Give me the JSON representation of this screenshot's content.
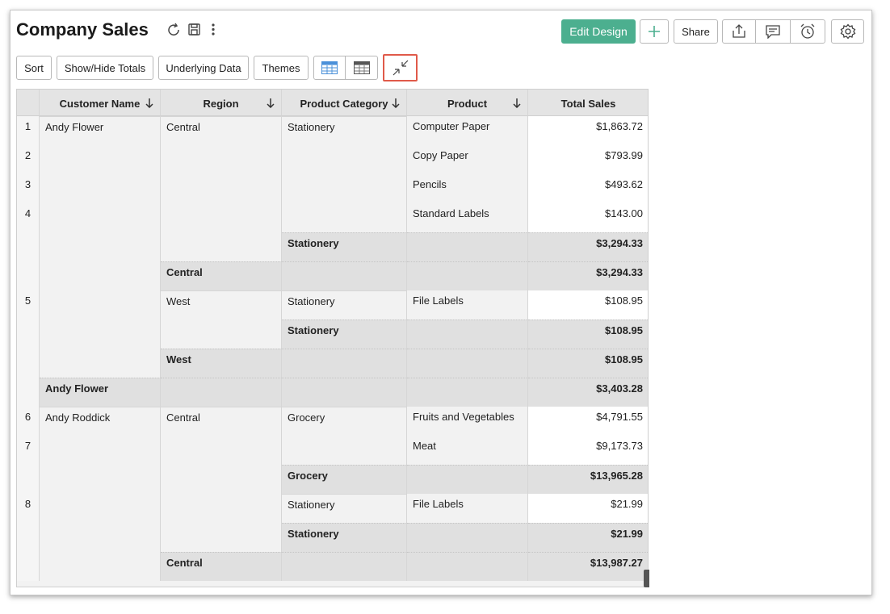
{
  "header": {
    "title": "Company Sales",
    "buttons": [
      "Edit Design",
      "Share"
    ]
  },
  "toolbar": {
    "buttons": [
      "Sort",
      "Show/Hide Totals",
      "Underlying Data",
      "Themes"
    ]
  },
  "table": {
    "columns": [
      "Customer Name",
      "Region",
      "Product Category",
      "Product",
      "Total Sales"
    ],
    "rows": [
      {
        "row": "1",
        "customer": "Andy Flower",
        "region": "Central",
        "category": "Stationery",
        "product": "Computer Paper",
        "sales": "$1,863.72"
      },
      {
        "row": "2",
        "product": "Copy Paper",
        "sales": "$793.99"
      },
      {
        "row": "3",
        "product": "Pencils",
        "sales": "$493.62"
      },
      {
        "row": "4",
        "product": "Standard Labels",
        "sales": "$143.00"
      },
      {
        "category_total": "Stationery",
        "sales": "$3,294.33"
      },
      {
        "region_total": "Central",
        "sales": "$3,294.33"
      },
      {
        "row": "5",
        "region": "West",
        "category": "Stationery",
        "product": "File Labels",
        "sales": "$108.95"
      },
      {
        "category_total": "Stationery",
        "sales": "$108.95"
      },
      {
        "region_total": "West",
        "sales": "$108.95"
      },
      {
        "customer_total": "Andy Flower",
        "sales": "$3,403.28"
      },
      {
        "row": "6",
        "customer": "Andy Roddick",
        "region": "Central",
        "category": "Grocery",
        "product": "Fruits and Vegetables",
        "sales": "$4,791.55"
      },
      {
        "row": "7",
        "product": "Meat",
        "sales": "$9,173.73"
      },
      {
        "category_total": "Grocery",
        "sales": "$13,965.28"
      },
      {
        "row": "8",
        "category": "Stationery",
        "product": "File Labels",
        "sales": "$21.99"
      },
      {
        "category_total": "Stationery",
        "sales": "$21.99"
      },
      {
        "region_total": "Central",
        "sales": "$13,987.27"
      }
    ]
  }
}
